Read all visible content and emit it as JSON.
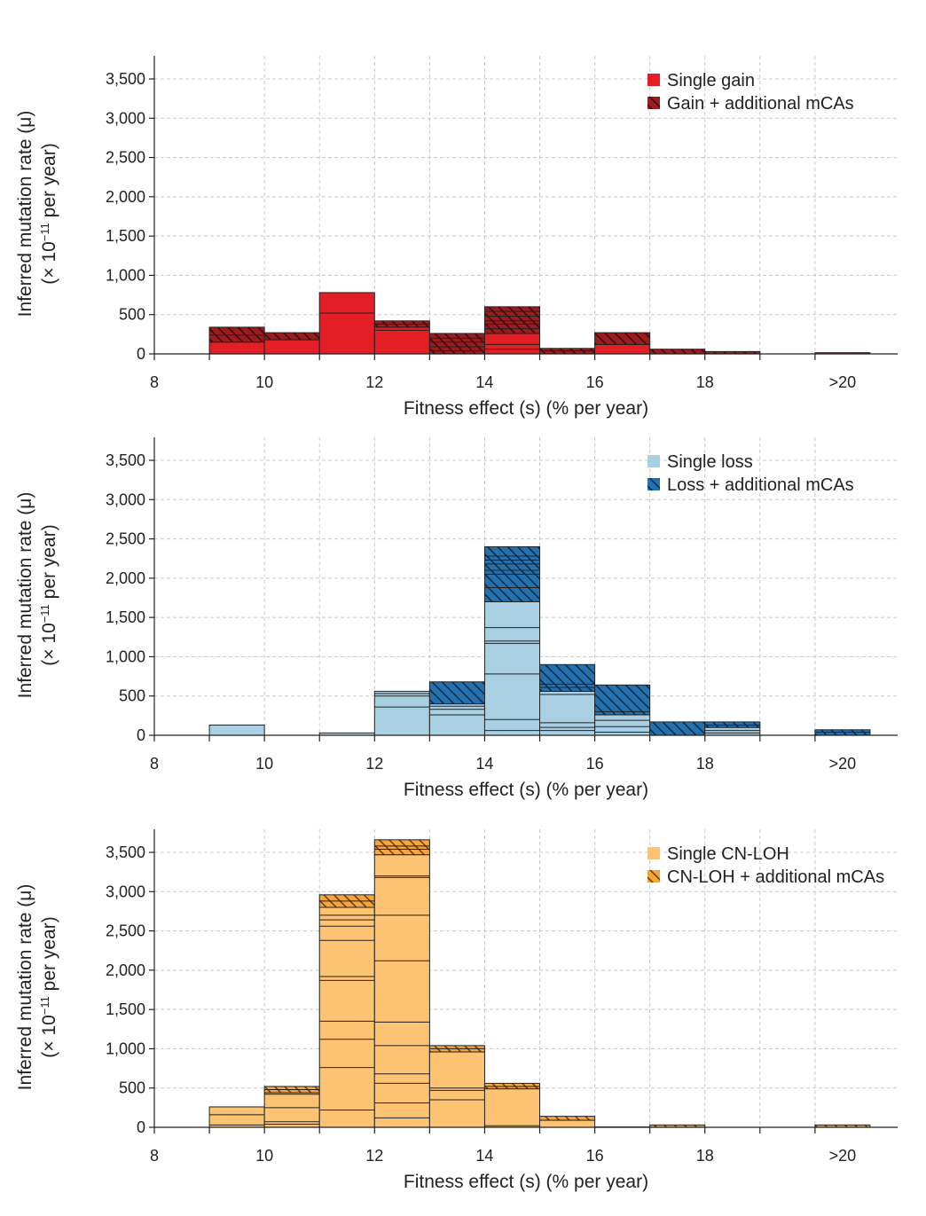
{
  "figure": {
    "tick_fixed_labels": []
  },
  "chart_data": [
    {
      "type": "bar",
      "name": "gain",
      "xlabel": "Fitness effect (s) (% per year)",
      "ylabel_line1": "Inferred mutation rate (μ)",
      "ylabel_line2_prefix": "(× 10",
      "ylabel_line2_exp": "−11",
      "ylabel_line2_suffix": " per year)",
      "xlim": [
        8,
        21.5
      ],
      "ylim": [
        0,
        3800
      ],
      "xticks": [
        8,
        10,
        12,
        14,
        16,
        18,
        20
      ],
      "xtick_labels": [
        "8",
        "10",
        "12",
        "14",
        "16",
        "18",
        ">20"
      ],
      "yticks": [
        0,
        500,
        1000,
        1500,
        2000,
        2500,
        3000,
        3500
      ],
      "ytick_labels": [
        "0",
        "500",
        "1,000",
        "1,500",
        "2,000",
        "2,500",
        "3,000",
        "3,500"
      ],
      "grid": true,
      "legend_position": "top-right",
      "colors": {
        "single": "#e31e24",
        "hatch_bg": "#9b1c1f",
        "hatch_line": "#3a0a0c"
      },
      "legend": [
        "Single gain",
        "Gain + additional mCAs"
      ],
      "bins": [
        {
          "x0": 9,
          "x1": 10,
          "single": 150,
          "additional": 190,
          "single_lines": [],
          "additional_lines": [
            240
          ]
        },
        {
          "x0": 10,
          "x1": 11,
          "single": 180,
          "additional": 90,
          "single_lines": [],
          "additional_lines": []
        },
        {
          "x0": 11,
          "x1": 12,
          "single": 780,
          "additional": 0,
          "single_lines": [
            520
          ],
          "additional_lines": []
        },
        {
          "x0": 12,
          "x1": 13,
          "single": 340,
          "additional": 80,
          "single_lines": [
            300
          ],
          "additional_lines": [
            380
          ]
        },
        {
          "x0": 13,
          "x1": 14,
          "single": 0,
          "additional": 260,
          "single_lines": [],
          "additional_lines": [
            40,
            90,
            150,
            200
          ]
        },
        {
          "x0": 14,
          "x1": 15,
          "single": 260,
          "additional": 340,
          "single_lines": [
            60,
            120
          ],
          "additional_lines": [
            320,
            380,
            420,
            480,
            540
          ]
        },
        {
          "x0": 15,
          "x1": 16,
          "single": 0,
          "additional": 70,
          "single_lines": [],
          "additional_lines": [
            40
          ]
        },
        {
          "x0": 16,
          "x1": 17,
          "single": 120,
          "additional": 150,
          "single_lines": [],
          "additional_lines": []
        },
        {
          "x0": 17,
          "x1": 18,
          "single": 0,
          "additional": 60,
          "single_lines": [],
          "additional_lines": []
        },
        {
          "x0": 18,
          "x1": 19,
          "single": 0,
          "additional": 30,
          "single_lines": [],
          "additional_lines": []
        },
        {
          "x0": 20,
          "x1": 21,
          "single": 0,
          "additional": 15,
          "single_lines": [],
          "additional_lines": []
        }
      ]
    },
    {
      "type": "bar",
      "name": "loss",
      "xlabel": "Fitness effect (s) (% per year)",
      "ylabel_line1": "Inferred mutation rate (μ)",
      "ylabel_line2_prefix": "(× 10",
      "ylabel_line2_exp": "−11",
      "ylabel_line2_suffix": " per year)",
      "xlim": [
        8,
        21.5
      ],
      "ylim": [
        0,
        3800
      ],
      "xticks": [
        8,
        10,
        12,
        14,
        16,
        18,
        20
      ],
      "xtick_labels": [
        "8",
        "10",
        "12",
        "14",
        "16",
        "18",
        ">20"
      ],
      "yticks": [
        0,
        500,
        1000,
        1500,
        2000,
        2500,
        3000,
        3500
      ],
      "ytick_labels": [
        "0",
        "500",
        "1,000",
        "1,500",
        "2,000",
        "2,500",
        "3,000",
        "3,500"
      ],
      "grid": true,
      "legend_position": "top-right",
      "colors": {
        "single": "#a9cfe3",
        "hatch_bg": "#2471b0",
        "hatch_line": "#0c2a44"
      },
      "legend": [
        "Single loss",
        "Loss + additional mCAs"
      ],
      "bins": [
        {
          "x0": 9,
          "x1": 10,
          "single": 130,
          "additional": 0,
          "single_lines": [],
          "additional_lines": []
        },
        {
          "x0": 11,
          "x1": 12,
          "single": 30,
          "additional": 0,
          "single_lines": [],
          "additional_lines": []
        },
        {
          "x0": 12,
          "x1": 13,
          "single": 560,
          "additional": 0,
          "single_lines": [
            360,
            500,
            530
          ],
          "additional_lines": []
        },
        {
          "x0": 13,
          "x1": 14,
          "single": 400,
          "additional": 280,
          "single_lines": [
            260,
            330,
            370
          ],
          "additional_lines": []
        },
        {
          "x0": 14,
          "x1": 15,
          "single": 1700,
          "additional": 700,
          "single_lines": [
            60,
            200,
            780,
            1170,
            1200,
            1370
          ],
          "additional_lines": [
            1880,
            2050,
            2100,
            2180,
            2230,
            2280
          ]
        },
        {
          "x0": 15,
          "x1": 16,
          "single": 560,
          "additional": 340,
          "single_lines": [
            60,
            100,
            160,
            520
          ],
          "additional_lines": [
            610,
            650
          ]
        },
        {
          "x0": 16,
          "x1": 17,
          "single": 260,
          "additional": 380,
          "single_lines": [
            40,
            110,
            190
          ],
          "additional_lines": [
            300
          ]
        },
        {
          "x0": 17,
          "x1": 18,
          "single": 0,
          "additional": 170,
          "single_lines": [],
          "additional_lines": []
        },
        {
          "x0": 18,
          "x1": 19,
          "single": 100,
          "additional": 70,
          "single_lines": [
            30,
            60
          ],
          "additional_lines": [
            130
          ]
        },
        {
          "x0": 20,
          "x1": 21,
          "single": 0,
          "additional": 70,
          "single_lines": [],
          "additional_lines": [
            40
          ]
        }
      ]
    },
    {
      "type": "bar",
      "name": "cnloh",
      "xlabel": "Fitness effect (s) (% per year)",
      "ylabel_line1": "Inferred mutation rate (μ)",
      "ylabel_line2_prefix": "(× 10",
      "ylabel_line2_exp": "−11",
      "ylabel_line2_suffix": " per year)",
      "xlim": [
        8,
        21.5
      ],
      "ylim": [
        0,
        3800
      ],
      "xticks": [
        8,
        10,
        12,
        14,
        16,
        18,
        20
      ],
      "xtick_labels": [
        "8",
        "10",
        "12",
        "14",
        "16",
        "18",
        ">20"
      ],
      "yticks": [
        0,
        500,
        1000,
        1500,
        2000,
        2500,
        3000,
        3500
      ],
      "ytick_labels": [
        "0",
        "500",
        "1,000",
        "1,500",
        "2,000",
        "2,500",
        "3,000",
        "3,500"
      ],
      "grid": true,
      "legend_position": "top-right",
      "colors": {
        "single": "#fcc373",
        "hatch_bg": "#f4a53b",
        "hatch_line": "#6b3e0b"
      },
      "legend": [
        "Single CN-LOH",
        "CN-LOH + additional mCAs"
      ],
      "bins": [
        {
          "x0": 9,
          "x1": 10,
          "single": 260,
          "additional": 0,
          "single_lines": [
            30,
            160
          ],
          "additional_lines": []
        },
        {
          "x0": 10,
          "x1": 11,
          "single": 440,
          "additional": 80,
          "single_lines": [
            40,
            70,
            250,
            420
          ],
          "additional_lines": [
            480
          ]
        },
        {
          "x0": 11,
          "x1": 12,
          "single": 2800,
          "additional": 160,
          "single_lines": [
            220,
            760,
            1120,
            1350,
            1870,
            1920,
            2380,
            2560,
            2640,
            2700
          ],
          "additional_lines": [
            2880
          ]
        },
        {
          "x0": 12,
          "x1": 13,
          "single": 3470,
          "additional": 190,
          "single_lines": [
            120,
            310,
            560,
            680,
            1040,
            1340,
            2120,
            2700,
            3180,
            3200
          ],
          "additional_lines": [
            3540,
            3580
          ]
        },
        {
          "x0": 13,
          "x1": 14,
          "single": 960,
          "additional": 80,
          "single_lines": [
            350,
            470,
            500
          ],
          "additional_lines": [
            1000
          ]
        },
        {
          "x0": 14,
          "x1": 15,
          "single": 490,
          "additional": 70,
          "single_lines": [
            20
          ],
          "additional_lines": [
            520
          ]
        },
        {
          "x0": 15,
          "x1": 16,
          "single": 90,
          "additional": 50,
          "single_lines": [],
          "additional_lines": []
        },
        {
          "x0": 16,
          "x1": 17,
          "single": 5,
          "additional": 0,
          "single_lines": [],
          "additional_lines": []
        },
        {
          "x0": 17,
          "x1": 18,
          "single": 0,
          "additional": 30,
          "single_lines": [],
          "additional_lines": []
        },
        {
          "x0": 20,
          "x1": 21,
          "single": 0,
          "additional": 30,
          "single_lines": [],
          "additional_lines": []
        }
      ]
    }
  ]
}
